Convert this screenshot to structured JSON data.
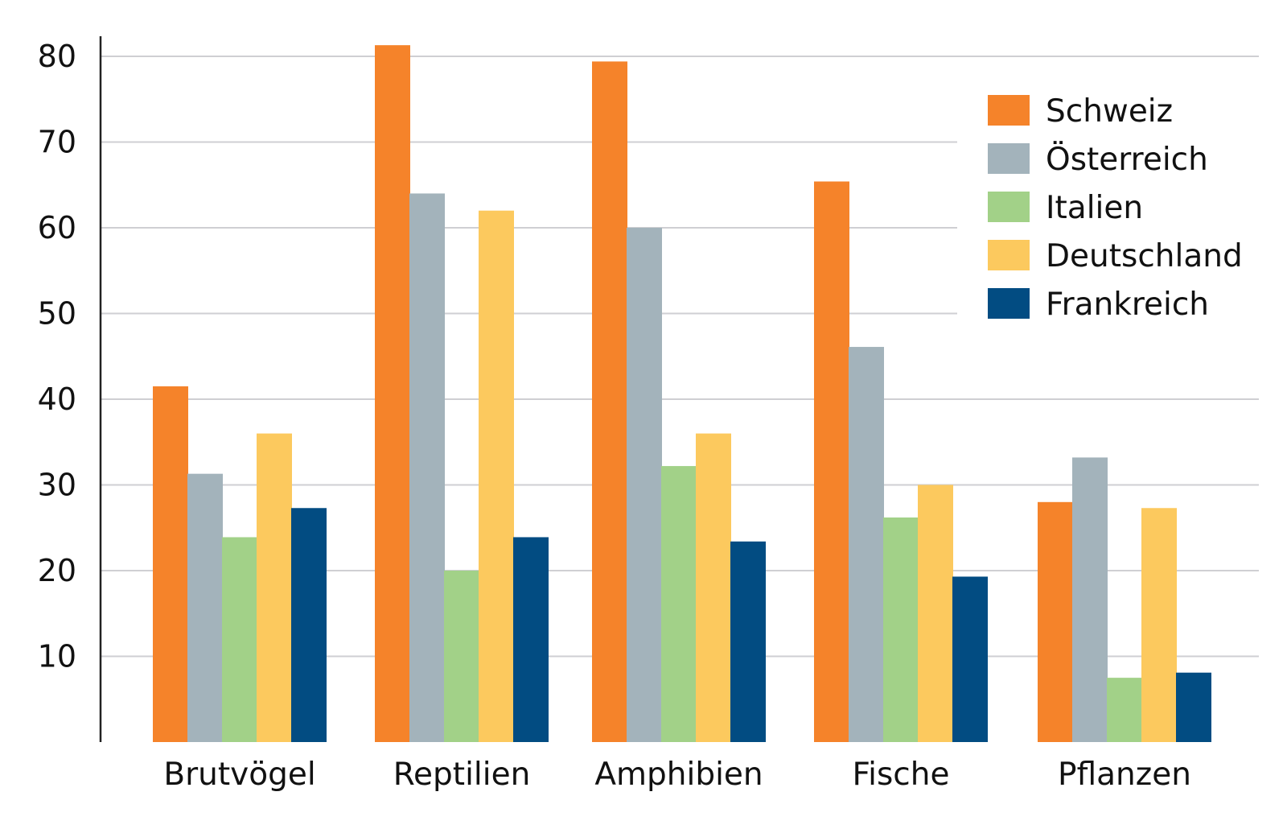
{
  "chart_data": {
    "type": "bar",
    "title": "",
    "xlabel": "",
    "ylabel": "",
    "categories": [
      "Brutvögel",
      "Reptilien",
      "Amphibien",
      "Fische",
      "Pflanzen"
    ],
    "series": [
      {
        "name": "Schweiz",
        "color": "#f5832a",
        "values": [
          41.5,
          81.3,
          79.4,
          65.4,
          28.0
        ]
      },
      {
        "name": "Österreich",
        "color": "#a3b3bb",
        "values": [
          31.3,
          64.0,
          60.0,
          46.1,
          33.2
        ]
      },
      {
        "name": "Italien",
        "color": "#a2d188",
        "values": [
          23.9,
          20.0,
          32.2,
          26.2,
          7.5
        ]
      },
      {
        "name": "Deutschland",
        "color": "#fcc95e",
        "values": [
          36.0,
          62.0,
          36.0,
          30.0,
          27.3
        ]
      },
      {
        "name": "Frankreich",
        "color": "#024c82",
        "values": [
          27.3,
          23.9,
          23.4,
          19.3,
          8.1
        ]
      }
    ],
    "yticks": [
      10,
      20,
      30,
      40,
      50,
      60,
      70,
      80
    ],
    "ylim": [
      0,
      82
    ],
    "grid": true,
    "legend_position": "top-right"
  }
}
